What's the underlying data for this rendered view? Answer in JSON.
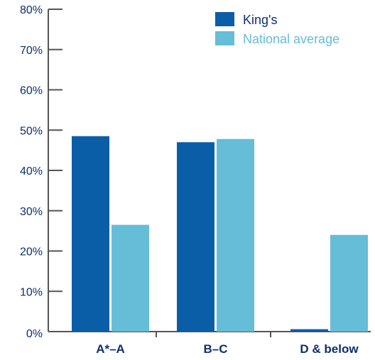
{
  "chart_data": {
    "type": "bar",
    "title": "",
    "xlabel": "",
    "ylabel": "",
    "categories": [
      "A*–A",
      "B–C",
      "D & below"
    ],
    "series": [
      {
        "name": "King's",
        "color": "#0a5ea8",
        "values": [
          48.5,
          47.0,
          0.6
        ]
      },
      {
        "name": "National average",
        "color": "#66bdd8",
        "values": [
          26.5,
          47.8,
          24.0
        ]
      }
    ],
    "ylim": [
      0,
      80
    ],
    "yticks": [
      0,
      10,
      20,
      30,
      40,
      50,
      60,
      70,
      80
    ],
    "ytick_format": "{v}%",
    "grid": false,
    "legend_position": "top-right",
    "axis_color": "#555555",
    "label_color": "#0d2f6e"
  }
}
